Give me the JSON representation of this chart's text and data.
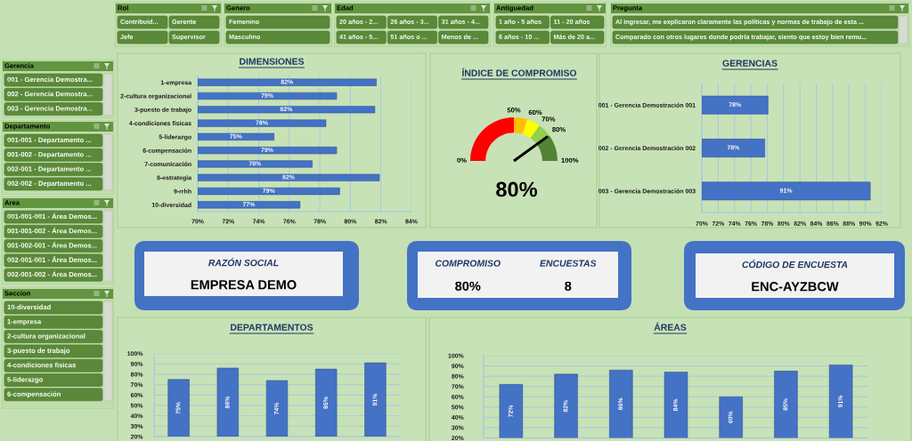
{
  "chart_data": [
    {
      "type": "other",
      "title": "Rol",
      "annotations": [
        "Contribuid...",
        "Gerente",
        "Jefe",
        "Supervisor"
      ]
    },
    {
      "type": "other",
      "title": "Genero",
      "annotations": [
        "Femenino",
        "Masculino"
      ]
    },
    {
      "type": "other",
      "title": "Edad",
      "annotations": [
        "20 años - 2...",
        "26 años - 3...",
        "31 años - 4...",
        "41 años - 5...",
        "51 años o ...",
        "Menos de ..."
      ]
    },
    {
      "type": "other",
      "title": "Antiguedad",
      "annotations": [
        "1 año - 5 años",
        "11 - 20 años",
        "6 años - 10 ...",
        "Más de 20 a..."
      ]
    },
    {
      "type": "other",
      "title": "Pregunta",
      "annotations": [
        "Al ingresar, me explicaron claramente las políticas y normas de trabajo de esta ...",
        "Comparado con otros lugares donde podría trabajar, siento que estoy bien remu..."
      ]
    },
    {
      "type": "other",
      "title": "Gerencia",
      "annotations": [
        "001 - Gerencia Demostra...",
        "002 - Gerencia Demostra...",
        "003 - Gerencia Demostra..."
      ]
    },
    {
      "type": "other",
      "title": "Departamento",
      "annotations": [
        "001-001 - Departamento ...",
        "001-002 - Departamento ...",
        "002-001 - Departamento ...",
        "002-002 - Departamento ..."
      ]
    },
    {
      "type": "other",
      "title": "Area",
      "annotations": [
        "001-001-001 - Área Demos...",
        "001-001-002 - Área Demos...",
        "001-002-001 - Área Demos...",
        "002-001-001 - Área Demos...",
        "002-001-002 - Área Demos..."
      ]
    },
    {
      "type": "other",
      "title": "Seccion",
      "annotations": [
        "10-diversidad",
        "1-empresa",
        "2-cultura organizacional",
        "3-puesto de trabajo",
        "4-condiciones fisicas",
        "5-liderazgo",
        "6-compensación"
      ]
    },
    {
      "type": "bar",
      "orientation": "horizontal",
      "title": "DIMENSIONES",
      "categories": [
        "1-empresa",
        "2-cultura organizacional",
        "3-puesto de trabajo",
        "4-condiciones fisicas",
        "5-liderazgo",
        "6-compensación",
        "7-comunicación",
        "8-estrategia",
        "9-rrhh",
        "10-diversidad"
      ],
      "values": [
        81.7,
        79.1,
        81.6,
        78.4,
        75.0,
        79.1,
        77.5,
        81.9,
        79.3,
        76.7
      ],
      "value_labels": [
        "82%",
        "79%",
        "82%",
        "78%",
        "75%",
        "79%",
        "78%",
        "82%",
        "79%",
        "77%"
      ],
      "color": "#4472c4",
      "xlim": [
        70,
        84
      ],
      "xticks": [
        {
          "value": 70,
          "label": "70%"
        },
        {
          "value": 72,
          "label": "72%"
        },
        {
          "value": 74,
          "label": "74%"
        },
        {
          "value": 76,
          "label": "76%"
        },
        {
          "value": 78,
          "label": "78%"
        },
        {
          "value": 80,
          "label": "80%"
        },
        {
          "value": 82,
          "label": "82%"
        },
        {
          "value": 84,
          "label": "84%"
        }
      ],
      "grid": "x"
    },
    {
      "type": "donut",
      "title": "ÍNDICE DE COMPROMISO",
      "categories": [
        "50%",
        "60%",
        "70%",
        "80%",
        "100%"
      ],
      "values": [
        50,
        10,
        10,
        10,
        20
      ],
      "colors": [
        "#ff0000",
        "#ffc000",
        "#ffff00",
        "#92d050",
        "#548235"
      ],
      "needle": "80%",
      "annotations": [
        "0%",
        "80%"
      ]
    },
    {
      "type": "bar",
      "orientation": "horizontal",
      "title": "GERENCIAS",
      "categories": [
        "001 - Gerencia Demostración 001",
        "002 - Gerencia Demostración 002",
        "003 - Gerencia Demostración 003"
      ],
      "values": [
        78.1,
        77.7,
        90.6
      ],
      "value_labels": [
        "78%",
        "78%",
        "91%"
      ],
      "color": "#4472c4",
      "xlim": [
        70,
        92
      ],
      "xticks": [
        {
          "value": 70,
          "label": "70%"
        },
        {
          "value": 72,
          "label": "72%"
        },
        {
          "value": 74,
          "label": "74%"
        },
        {
          "value": 76,
          "label": "76%"
        },
        {
          "value": 78,
          "label": "78%"
        },
        {
          "value": 80,
          "label": "80%"
        },
        {
          "value": 82,
          "label": "82%"
        },
        {
          "value": 84,
          "label": "84%"
        },
        {
          "value": 86,
          "label": "86%"
        },
        {
          "value": 88,
          "label": "88%"
        },
        {
          "value": 90,
          "label": "90%"
        },
        {
          "value": 92,
          "label": "92%"
        }
      ],
      "grid": "x"
    },
    {
      "type": "other",
      "annotations": [
        "RAZÓN SOCIAL",
        "EMPRESA DEMO"
      ]
    },
    {
      "type": "other",
      "annotations": [
        "COMPROMISO",
        "ENCUESTAS",
        "80%",
        "8"
      ]
    },
    {
      "type": "other",
      "annotations": [
        "CÓDIGO DE ENCUESTA",
        "ENC-AYZBCW"
      ]
    },
    {
      "type": "bar",
      "title": "DEPARTAMENTOS",
      "categories": [
        null,
        null,
        null,
        null,
        null
      ],
      "values": [
        75,
        86,
        74,
        85,
        91
      ],
      "value_labels": [
        "75%",
        "86%",
        "74%",
        "85%",
        "91%"
      ],
      "color": "#4472c4",
      "ylim": [
        20,
        100
      ],
      "yticks": [
        {
          "value": 20,
          "label": "20%"
        },
        {
          "value": 30,
          "label": "30%"
        },
        {
          "value": 40,
          "label": "40%"
        },
        {
          "value": 50,
          "label": "50%"
        },
        {
          "value": 60,
          "label": "60%"
        },
        {
          "value": 70,
          "label": "70%"
        },
        {
          "value": 80,
          "label": "80%"
        },
        {
          "value": 90,
          "label": "90%"
        },
        {
          "value": 100,
          "label": "100%"
        }
      ],
      "grid": "y"
    },
    {
      "type": "bar",
      "title": "ÁREAS",
      "categories": [
        null,
        null,
        null,
        null,
        null,
        null,
        null
      ],
      "values": [
        72,
        82,
        86,
        84,
        60,
        85,
        91
      ],
      "value_labels": [
        "72%",
        "82%",
        "86%",
        "84%",
        "60%",
        "85%",
        "91%"
      ],
      "color": "#4472c4",
      "ylim": [
        20,
        100
      ],
      "yticks": [
        {
          "value": 20,
          "label": "20%"
        },
        {
          "value": 30,
          "label": "30%"
        },
        {
          "value": 40,
          "label": "40%"
        },
        {
          "value": 50,
          "label": "50%"
        },
        {
          "value": 60,
          "label": "60%"
        },
        {
          "value": 70,
          "label": "70%"
        },
        {
          "value": 80,
          "label": "80%"
        },
        {
          "value": 90,
          "label": "90%"
        },
        {
          "value": 100,
          "label": "100%"
        }
      ],
      "grid": "y"
    }
  ]
}
